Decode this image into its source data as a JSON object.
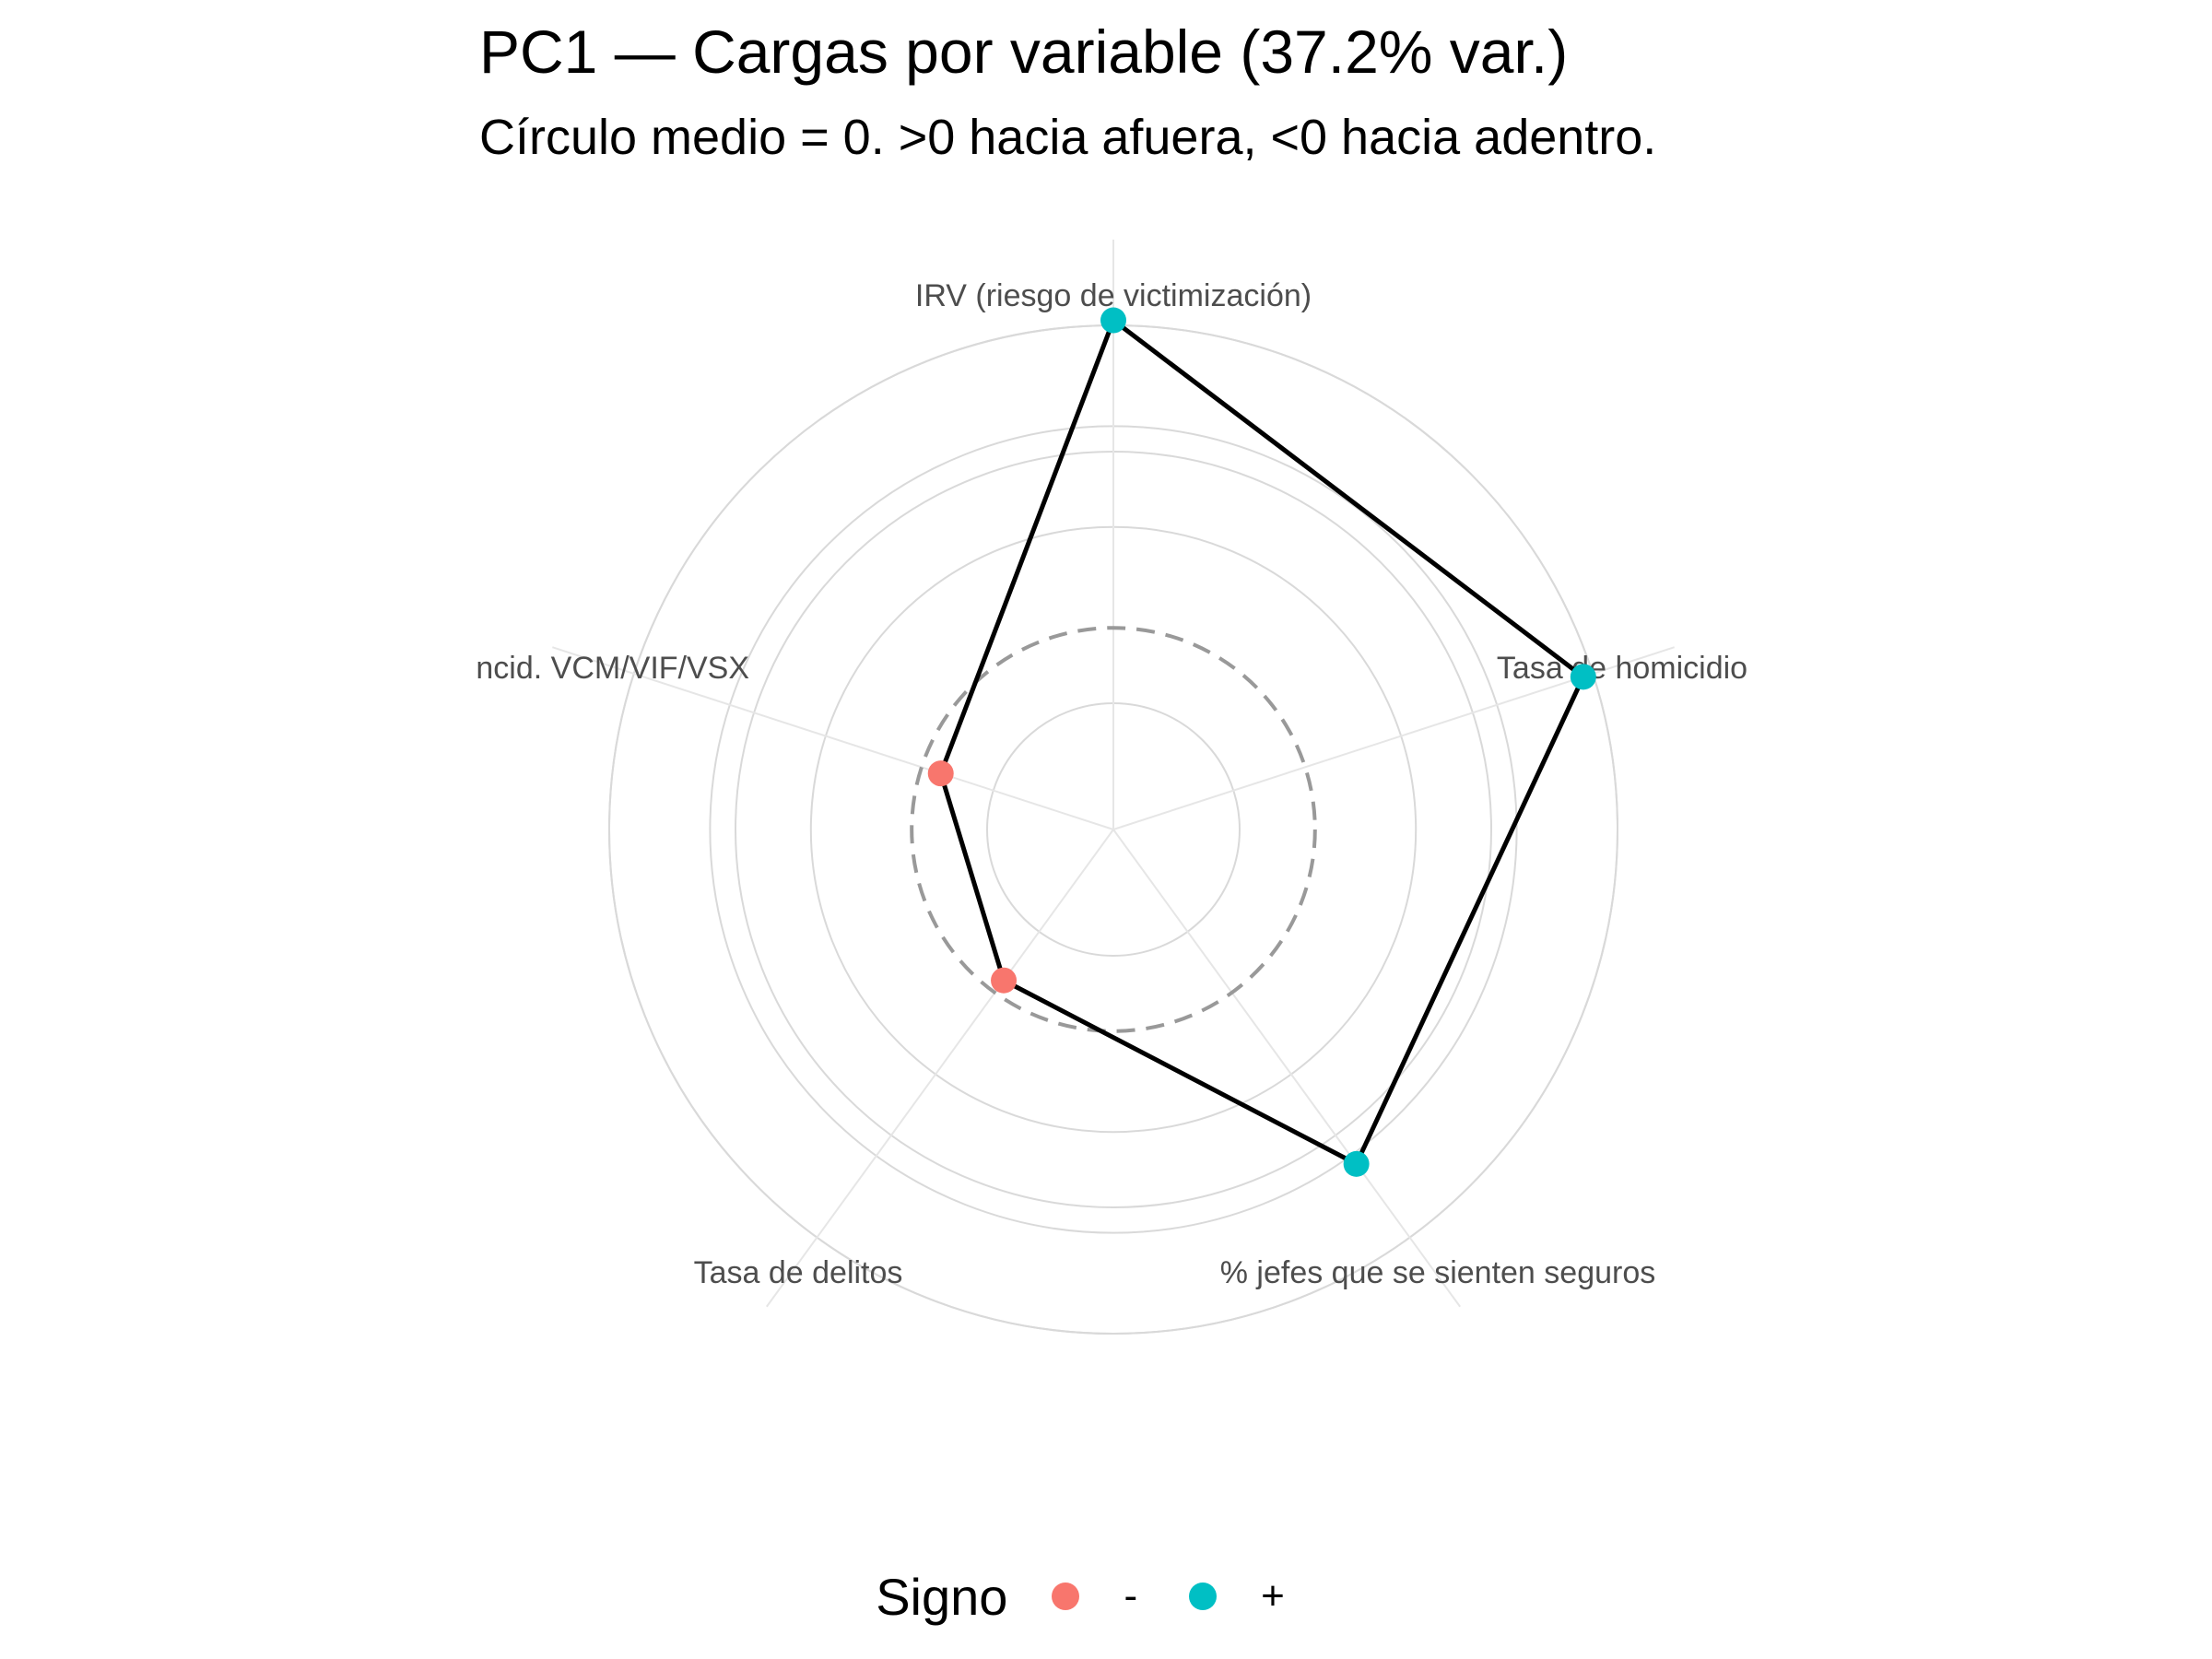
{
  "title": "PC1 — Cargas por variable (37.2% var.)",
  "subtitle": "Círculo medio = 0. >0 hacia afuera, <0 hacia adentro.",
  "legend": {
    "title": "Signo",
    "items": [
      {
        "label": "-",
        "color": "#F8766D"
      },
      {
        "label": "+",
        "color": "#00BFC4"
      }
    ]
  },
  "chart_data": {
    "type": "radar",
    "series": [
      {
        "values": [
          {
            "variable": "IRV (riesgo de victimización)",
            "loading": 0.61,
            "sign": "+"
          },
          {
            "variable": "Tasa de homicidio",
            "loading": 0.58,
            "sign": "+"
          },
          {
            "variable": "% jefes que se sienten seguros",
            "loading": 0.42,
            "sign": "+"
          },
          {
            "variable": "Tasa de delitos",
            "loading": -0.03,
            "sign": "-"
          },
          {
            "variable": "Incid. VCM/VIF/VSX",
            "loading": -0.04,
            "sign": "-"
          }
        ]
      }
    ],
    "zero_reference": 0,
    "zero_reference_style": "dashed",
    "radial_range": [
      -0.4,
      0.6
    ],
    "grid": true,
    "legend_position": "bottom",
    "colors": {
      "negative": "#F8766D",
      "positive": "#00BFC4",
      "line": "#000000",
      "grid": "#D9D9D9",
      "reference": "#999999"
    }
  }
}
